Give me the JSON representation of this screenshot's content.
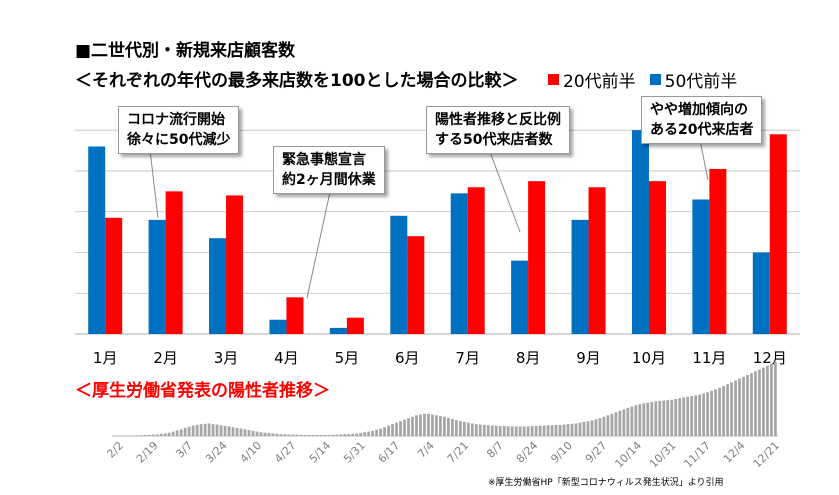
{
  "title": "■二世代別・新規来店顧客数",
  "subtitle": "＜それぞれの年代の最多来店数を100とした場合の比較＞",
  "colors": {
    "red": "#ff0000",
    "blue": "#0070c0",
    "trend": "#a6a6a6",
    "grid": "#bfbfbf"
  },
  "chart_data": {
    "type": "bar",
    "categories": [
      "1月",
      "2月",
      "3月",
      "4月",
      "5月",
      "6月",
      "7月",
      "8月",
      "9月",
      "10月",
      "11月",
      "12月"
    ],
    "series": [
      {
        "name": "20代前半",
        "color": "#ff0000",
        "values": [
          57,
          70,
          68,
          18,
          8,
          48,
          72,
          75,
          72,
          75,
          81,
          98
        ]
      },
      {
        "name": "50代前半",
        "color": "#0070c0",
        "values": [
          92,
          56,
          47,
          7,
          3,
          58,
          69,
          36,
          56,
          100,
          66,
          40
        ]
      }
    ],
    "ylim": [
      0,
      105
    ],
    "grid": true,
    "legend": "top-right"
  },
  "callouts": [
    {
      "lines": [
        "コロナ流行開始",
        "徐々に50代減少"
      ]
    },
    {
      "lines": [
        "緊急事態宣言",
        "約2ヶ月間休業"
      ]
    },
    {
      "lines": [
        "陽性者推移と反比例",
        "する50代来店者数"
      ]
    },
    {
      "lines": [
        "やや増加傾向の",
        "ある20代来店者"
      ]
    }
  ],
  "trend_chart": {
    "title": "＜厚生労働省発表の陽性者推移＞",
    "type": "bar",
    "date_labels": [
      "2/2",
      "2/19",
      "3/7",
      "3/24",
      "4/10",
      "4/27",
      "5/14",
      "5/31",
      "6/17",
      "7/4",
      "7/21",
      "8/7",
      "8/24",
      "9/10",
      "9/27",
      "10/14",
      "10/31",
      "11/17",
      "12/4",
      "12/21"
    ],
    "values": [
      1,
      1,
      1,
      1,
      1,
      1,
      2,
      2,
      3,
      3,
      4,
      4,
      6,
      7,
      9,
      12,
      15,
      18,
      22,
      25,
      28,
      30,
      32,
      33,
      34,
      32,
      31,
      29,
      27,
      26,
      24,
      22,
      20,
      18,
      16,
      14,
      12,
      10,
      9,
      8,
      7,
      6,
      5,
      5,
      4,
      4,
      4,
      3,
      3,
      3,
      3,
      3,
      3,
      3,
      3,
      3,
      4,
      4,
      5,
      5,
      6,
      7,
      8,
      10,
      12,
      14,
      17,
      20,
      24,
      28,
      32,
      36,
      40,
      44,
      48,
      52,
      56,
      58,
      60,
      60,
      58,
      56,
      54,
      52,
      49,
      46,
      43,
      40,
      38,
      36,
      34,
      32,
      31,
      30,
      29,
      28,
      28,
      27,
      27,
      26,
      26,
      26,
      26,
      26,
      26,
      27,
      27,
      28,
      28,
      29,
      29,
      30,
      30,
      31,
      32,
      33,
      34,
      36,
      38,
      40,
      42,
      45,
      48,
      52,
      56,
      60,
      64,
      68,
      72,
      76,
      80,
      83,
      86,
      88,
      90,
      92,
      94,
      95,
      96,
      97,
      98,
      100,
      102,
      104,
      106,
      108,
      110,
      112,
      115,
      118,
      122,
      126,
      130,
      135,
      140,
      145,
      150,
      155,
      160,
      165,
      170,
      175,
      180,
      185,
      190,
      195,
      200
    ]
  },
  "footnote": "※厚生労働省HP「新型コロナウィルス発生状況」より引用"
}
